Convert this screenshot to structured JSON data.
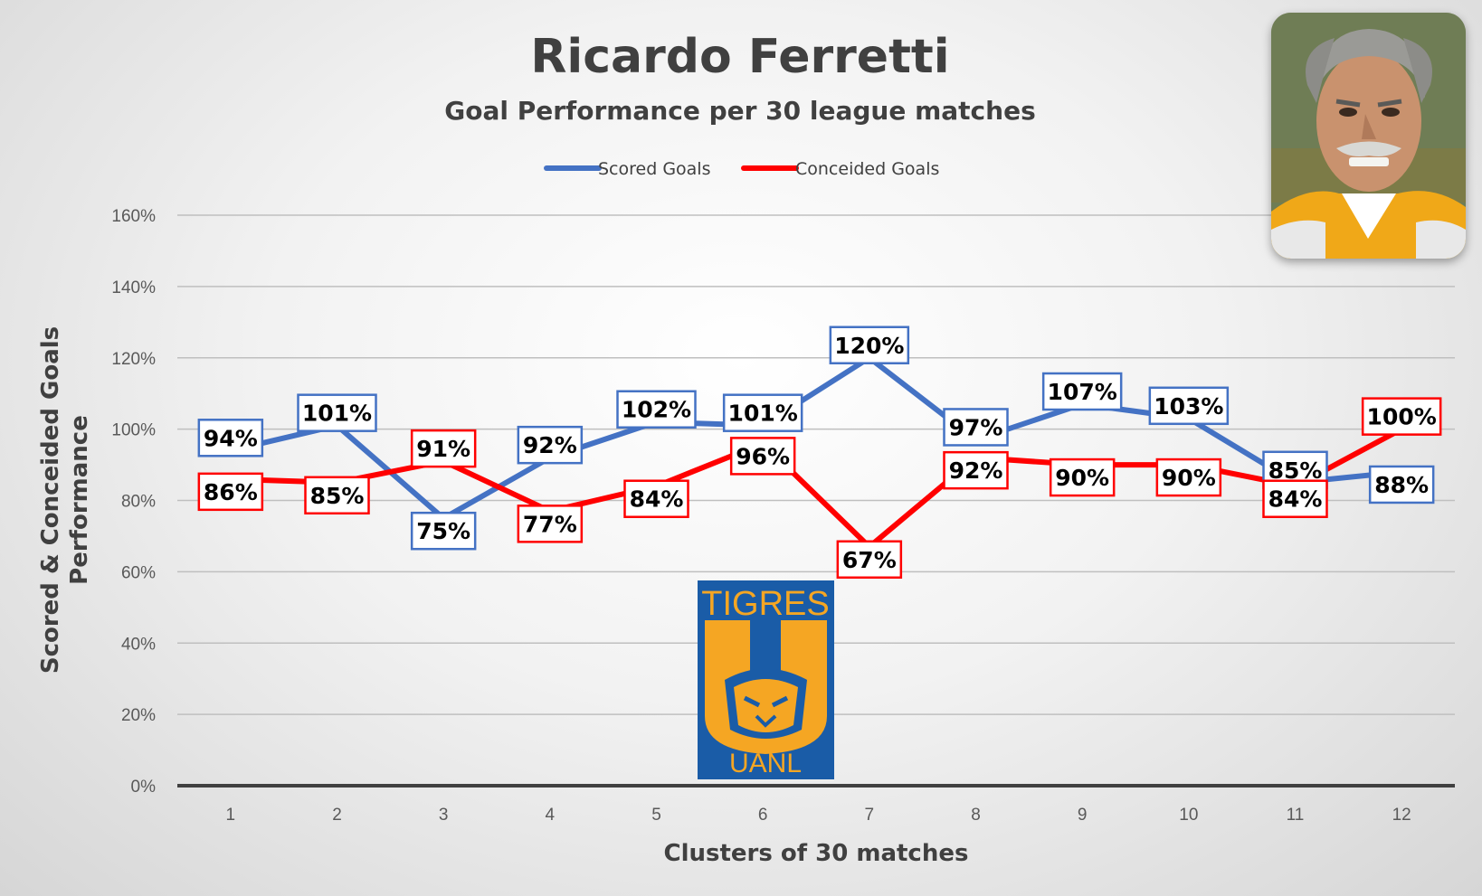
{
  "chart_data": {
    "type": "line",
    "title": "Ricardo Ferretti",
    "subtitle": "Goal Performance per 30 league matches",
    "xlabel": "Clusters of 30 matches",
    "ylabel_line1": "Scored & Conceided Goals",
    "ylabel_line2": "Performance",
    "categories": [
      "1",
      "2",
      "3",
      "4",
      "5",
      "6",
      "7",
      "8",
      "9",
      "10",
      "11",
      "12"
    ],
    "yticks": [
      "0%",
      "20%",
      "40%",
      "60%",
      "80%",
      "100%",
      "120%",
      "140%",
      "160%"
    ],
    "ylim": [
      0,
      160
    ],
    "grid": true,
    "legend_position": "top",
    "series": [
      {
        "name": "Scored Goals",
        "color": "#4472c4",
        "values": [
          94,
          101,
          75,
          92,
          102,
          101,
          120,
          97,
          107,
          103,
          85,
          88
        ],
        "labels": [
          "94%",
          "101%",
          "75%",
          "92%",
          "102%",
          "101%",
          "120%",
          "97%",
          "107%",
          "103%",
          "85%",
          "88%"
        ]
      },
      {
        "name": "Conceided Goals",
        "color": "#ff0000",
        "values": [
          86,
          85,
          91,
          77,
          84,
          96,
          67,
          92,
          90,
          90,
          84,
          100
        ],
        "labels": [
          "86%",
          "85%",
          "91%",
          "77%",
          "84%",
          "96%",
          "67%",
          "92%",
          "90%",
          "90%",
          "84%",
          "100%"
        ]
      }
    ]
  },
  "images": {
    "photo": "coach-portrait",
    "logo": "tigres-uanl-logo",
    "logo_text_top": "TIGRES",
    "logo_text_bottom": "UANL"
  }
}
